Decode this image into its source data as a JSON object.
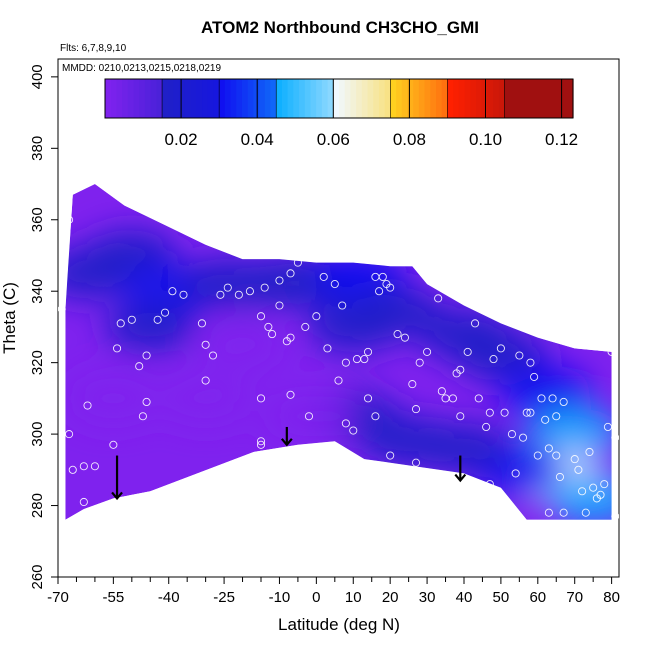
{
  "chart_data": {
    "type": "heatmap",
    "title": "ATOM2 Northbound CH3CHO_GMI",
    "xlabel": "Latitude (deg N)",
    "ylabel": "Theta (C)",
    "xlim": [
      -70,
      82
    ],
    "ylim": [
      260,
      405
    ],
    "x_ticks": [
      -70,
      -55,
      -40,
      -25,
      -10,
      0,
      10,
      20,
      30,
      40,
      50,
      60,
      70,
      80
    ],
    "x_minor_ticks": [
      -65,
      -60,
      -50,
      -45,
      -35,
      -30,
      -20,
      -15,
      -5,
      5,
      15,
      25,
      35,
      45,
      55,
      65,
      75
    ],
    "y_ticks": [
      260,
      280,
      300,
      320,
      340,
      360,
      380,
      400
    ],
    "flights_text": "Flts: 6,7,8,9,10",
    "dates_text": "MMDD: 0210,0213,0215,0218,0219",
    "colorbar": {
      "min": 0.0,
      "max": 0.123,
      "ticks": [
        0.02,
        0.04,
        0.06,
        0.08,
        0.1,
        0.12
      ],
      "tick_labels": [
        "0.02",
        "0.04",
        "0.06",
        "0.08",
        "0.10",
        "0.12"
      ],
      "boundaries": [
        0.0,
        0.015,
        0.03,
        0.045,
        0.06,
        0.075,
        0.09,
        0.105,
        0.123
      ],
      "colors": [
        "#7f22ee",
        "#2020c8",
        "#1010f0",
        "#10b0ff",
        "#f0f8ff",
        "#ffd020",
        "#ff2000",
        "#a01010"
      ]
    },
    "region_top": [
      [
        -68,
        335
      ],
      [
        -66,
        367
      ],
      [
        -60,
        370
      ],
      [
        -52,
        364
      ],
      [
        -40,
        358
      ],
      [
        -30,
        353
      ],
      [
        -20,
        349
      ],
      [
        -10,
        349
      ],
      [
        0,
        348
      ],
      [
        10,
        348
      ],
      [
        20,
        347
      ],
      [
        26,
        347
      ],
      [
        30,
        342
      ],
      [
        40,
        336
      ],
      [
        50,
        331
      ],
      [
        60,
        327
      ],
      [
        70,
        324
      ],
      [
        80,
        323
      ]
    ],
    "region_bottom": [
      [
        80,
        276
      ],
      [
        57,
        276
      ],
      [
        50,
        285
      ],
      [
        40,
        289
      ],
      [
        20,
        292
      ],
      [
        13,
        293
      ],
      [
        5,
        298
      ],
      [
        -5,
        297
      ],
      [
        -17,
        295
      ],
      [
        -45,
        284
      ],
      [
        -55,
        282
      ],
      [
        -63,
        279
      ],
      [
        -68,
        276
      ]
    ],
    "fields": [
      {
        "x": -62,
        "y": 345,
        "value": 0.018
      },
      {
        "x": -50,
        "y": 350,
        "value": 0.025
      },
      {
        "x": -40,
        "y": 340,
        "value": 0.035
      },
      {
        "x": -45,
        "y": 330,
        "value": 0.022
      },
      {
        "x": -25,
        "y": 342,
        "value": 0.028
      },
      {
        "x": -10,
        "y": 342,
        "value": 0.02
      },
      {
        "x": 0,
        "y": 343,
        "value": 0.03
      },
      {
        "x": 12,
        "y": 344,
        "value": 0.032
      },
      {
        "x": 10,
        "y": 330,
        "value": 0.018
      },
      {
        "x": 22,
        "y": 334,
        "value": 0.02
      },
      {
        "x": 40,
        "y": 328,
        "value": 0.024
      },
      {
        "x": 50,
        "y": 322,
        "value": 0.02
      },
      {
        "x": 62,
        "y": 312,
        "value": 0.034
      },
      {
        "x": 70,
        "y": 300,
        "value": 0.05
      },
      {
        "x": 65,
        "y": 288,
        "value": 0.065
      },
      {
        "x": 75,
        "y": 282,
        "value": 0.046
      },
      {
        "x": 55,
        "y": 290,
        "value": 0.036
      },
      {
        "x": 40,
        "y": 296,
        "value": 0.03
      },
      {
        "x": 25,
        "y": 298,
        "value": 0.022
      },
      {
        "x": 10,
        "y": 305,
        "value": 0.016
      },
      {
        "x": -2,
        "y": 305,
        "value": 0.013
      },
      {
        "x": -30,
        "y": 310,
        "value": 0.011
      },
      {
        "x": -55,
        "y": 310,
        "value": 0.01
      },
      {
        "x": -20,
        "y": 325,
        "value": 0.012
      }
    ],
    "observations": [
      {
        "lat": -69,
        "theta": 335
      },
      {
        "lat": -67,
        "theta": 360
      },
      {
        "lat": -66,
        "theta": 290
      },
      {
        "lat": -67,
        "theta": 300
      },
      {
        "lat": -63,
        "theta": 291
      },
      {
        "lat": -63,
        "theta": 281
      },
      {
        "lat": -60,
        "theta": 291
      },
      {
        "lat": -62,
        "theta": 308
      },
      {
        "lat": -55,
        "theta": 297
      },
      {
        "lat": -54,
        "theta": 324
      },
      {
        "lat": -53,
        "theta": 331
      },
      {
        "lat": -50,
        "theta": 332
      },
      {
        "lat": -48,
        "theta": 319
      },
      {
        "lat": -46,
        "theta": 309
      },
      {
        "lat": -47,
        "theta": 305
      },
      {
        "lat": -46,
        "theta": 322
      },
      {
        "lat": -43,
        "theta": 332
      },
      {
        "lat": -41,
        "theta": 334
      },
      {
        "lat": -36,
        "theta": 339
      },
      {
        "lat": -31,
        "theta": 331
      },
      {
        "lat": -30,
        "theta": 325
      },
      {
        "lat": -28,
        "theta": 322
      },
      {
        "lat": -30,
        "theta": 315
      },
      {
        "lat": -24,
        "theta": 341
      },
      {
        "lat": -21,
        "theta": 339
      },
      {
        "lat": -18,
        "theta": 340
      },
      {
        "lat": -14,
        "theta": 341
      },
      {
        "lat": -15,
        "theta": 333
      },
      {
        "lat": -12,
        "theta": 328
      },
      {
        "lat": -13,
        "theta": 330
      },
      {
        "lat": -10,
        "theta": 343
      },
      {
        "lat": -7,
        "theta": 345
      },
      {
        "lat": -5,
        "theta": 348
      },
      {
        "lat": -15,
        "theta": 298
      },
      {
        "lat": -15,
        "theta": 297
      },
      {
        "lat": -15,
        "theta": 310
      },
      {
        "lat": -10,
        "theta": 336
      },
      {
        "lat": -7,
        "theta": 327
      },
      {
        "lat": -8,
        "theta": 326
      },
      {
        "lat": -7,
        "theta": 311
      },
      {
        "lat": -2,
        "theta": 305
      },
      {
        "lat": -3,
        "theta": 330
      },
      {
        "lat": 0,
        "theta": 333
      },
      {
        "lat": 2,
        "theta": 344
      },
      {
        "lat": 3,
        "theta": 324
      },
      {
        "lat": 5,
        "theta": 342
      },
      {
        "lat": 7,
        "theta": 336
      },
      {
        "lat": 8,
        "theta": 320
      },
      {
        "lat": 6,
        "theta": 315
      },
      {
        "lat": 8,
        "theta": 303
      },
      {
        "lat": 10,
        "theta": 301
      },
      {
        "lat": 11,
        "theta": 321
      },
      {
        "lat": 13,
        "theta": 321
      },
      {
        "lat": 14,
        "theta": 323
      },
      {
        "lat": 16,
        "theta": 344
      },
      {
        "lat": 17,
        "theta": 340
      },
      {
        "lat": 18,
        "theta": 344
      },
      {
        "lat": 19,
        "theta": 342
      },
      {
        "lat": 20,
        "theta": 341
      },
      {
        "lat": 14,
        "theta": 310
      },
      {
        "lat": 16,
        "theta": 305
      },
      {
        "lat": 20,
        "theta": 294
      },
      {
        "lat": 22,
        "theta": 328
      },
      {
        "lat": 24,
        "theta": 327
      },
      {
        "lat": 26,
        "theta": 314
      },
      {
        "lat": 27,
        "theta": 307
      },
      {
        "lat": 27,
        "theta": 292
      },
      {
        "lat": 28,
        "theta": 320
      },
      {
        "lat": 30,
        "theta": 323
      },
      {
        "lat": 33,
        "theta": 338
      },
      {
        "lat": 34,
        "theta": 312
      },
      {
        "lat": 35,
        "theta": 310
      },
      {
        "lat": 37,
        "theta": 310
      },
      {
        "lat": 38,
        "theta": 317
      },
      {
        "lat": 39,
        "theta": 305
      },
      {
        "lat": 39,
        "theta": 318
      },
      {
        "lat": 41,
        "theta": 323
      },
      {
        "lat": 43,
        "theta": 331
      },
      {
        "lat": 44,
        "theta": 310
      },
      {
        "lat": 46,
        "theta": 302
      },
      {
        "lat": 47,
        "theta": 306
      },
      {
        "lat": 47,
        "theta": 286
      },
      {
        "lat": 48,
        "theta": 321
      },
      {
        "lat": 50,
        "theta": 324
      },
      {
        "lat": 51,
        "theta": 306
      },
      {
        "lat": 53,
        "theta": 300
      },
      {
        "lat": 55,
        "theta": 322
      },
      {
        "lat": 56,
        "theta": 299
      },
      {
        "lat": 57,
        "theta": 306
      },
      {
        "lat": 58,
        "theta": 306
      },
      {
        "lat": 58,
        "theta": 320
      },
      {
        "lat": 59,
        "theta": 316
      },
      {
        "lat": 60,
        "theta": 294
      },
      {
        "lat": 61,
        "theta": 310
      },
      {
        "lat": 62,
        "theta": 304
      },
      {
        "lat": 63,
        "theta": 296
      },
      {
        "lat": 63,
        "theta": 278
      },
      {
        "lat": 64,
        "theta": 310
      },
      {
        "lat": 65,
        "theta": 305
      },
      {
        "lat": 65,
        "theta": 294
      },
      {
        "lat": 66,
        "theta": 288
      },
      {
        "lat": 67,
        "theta": 278
      },
      {
        "lat": 67,
        "theta": 309
      },
      {
        "lat": 70,
        "theta": 293
      },
      {
        "lat": 71,
        "theta": 290
      },
      {
        "lat": 72,
        "theta": 284
      },
      {
        "lat": 73,
        "theta": 278
      },
      {
        "lat": 74,
        "theta": 295
      },
      {
        "lat": 75,
        "theta": 285
      },
      {
        "lat": 77,
        "theta": 283
      },
      {
        "lat": 78,
        "theta": 286
      },
      {
        "lat": 79,
        "theta": 302
      },
      {
        "lat": 80,
        "theta": 323
      },
      {
        "lat": 81,
        "theta": 277
      },
      {
        "lat": 81,
        "theta": 299
      },
      {
        "lat": 76,
        "theta": 282
      },
      {
        "lat": 54,
        "theta": 289
      },
      {
        "lat": -39,
        "theta": 340
      },
      {
        "lat": -26,
        "theta": 339
      }
    ],
    "arrows": [
      {
        "lat": -54,
        "theta_top": 294,
        "theta_bottom": 282
      },
      {
        "lat": -8,
        "theta_top": 302,
        "theta_bottom": 297
      },
      {
        "lat": 39,
        "theta_top": 294,
        "theta_bottom": 287
      }
    ]
  }
}
